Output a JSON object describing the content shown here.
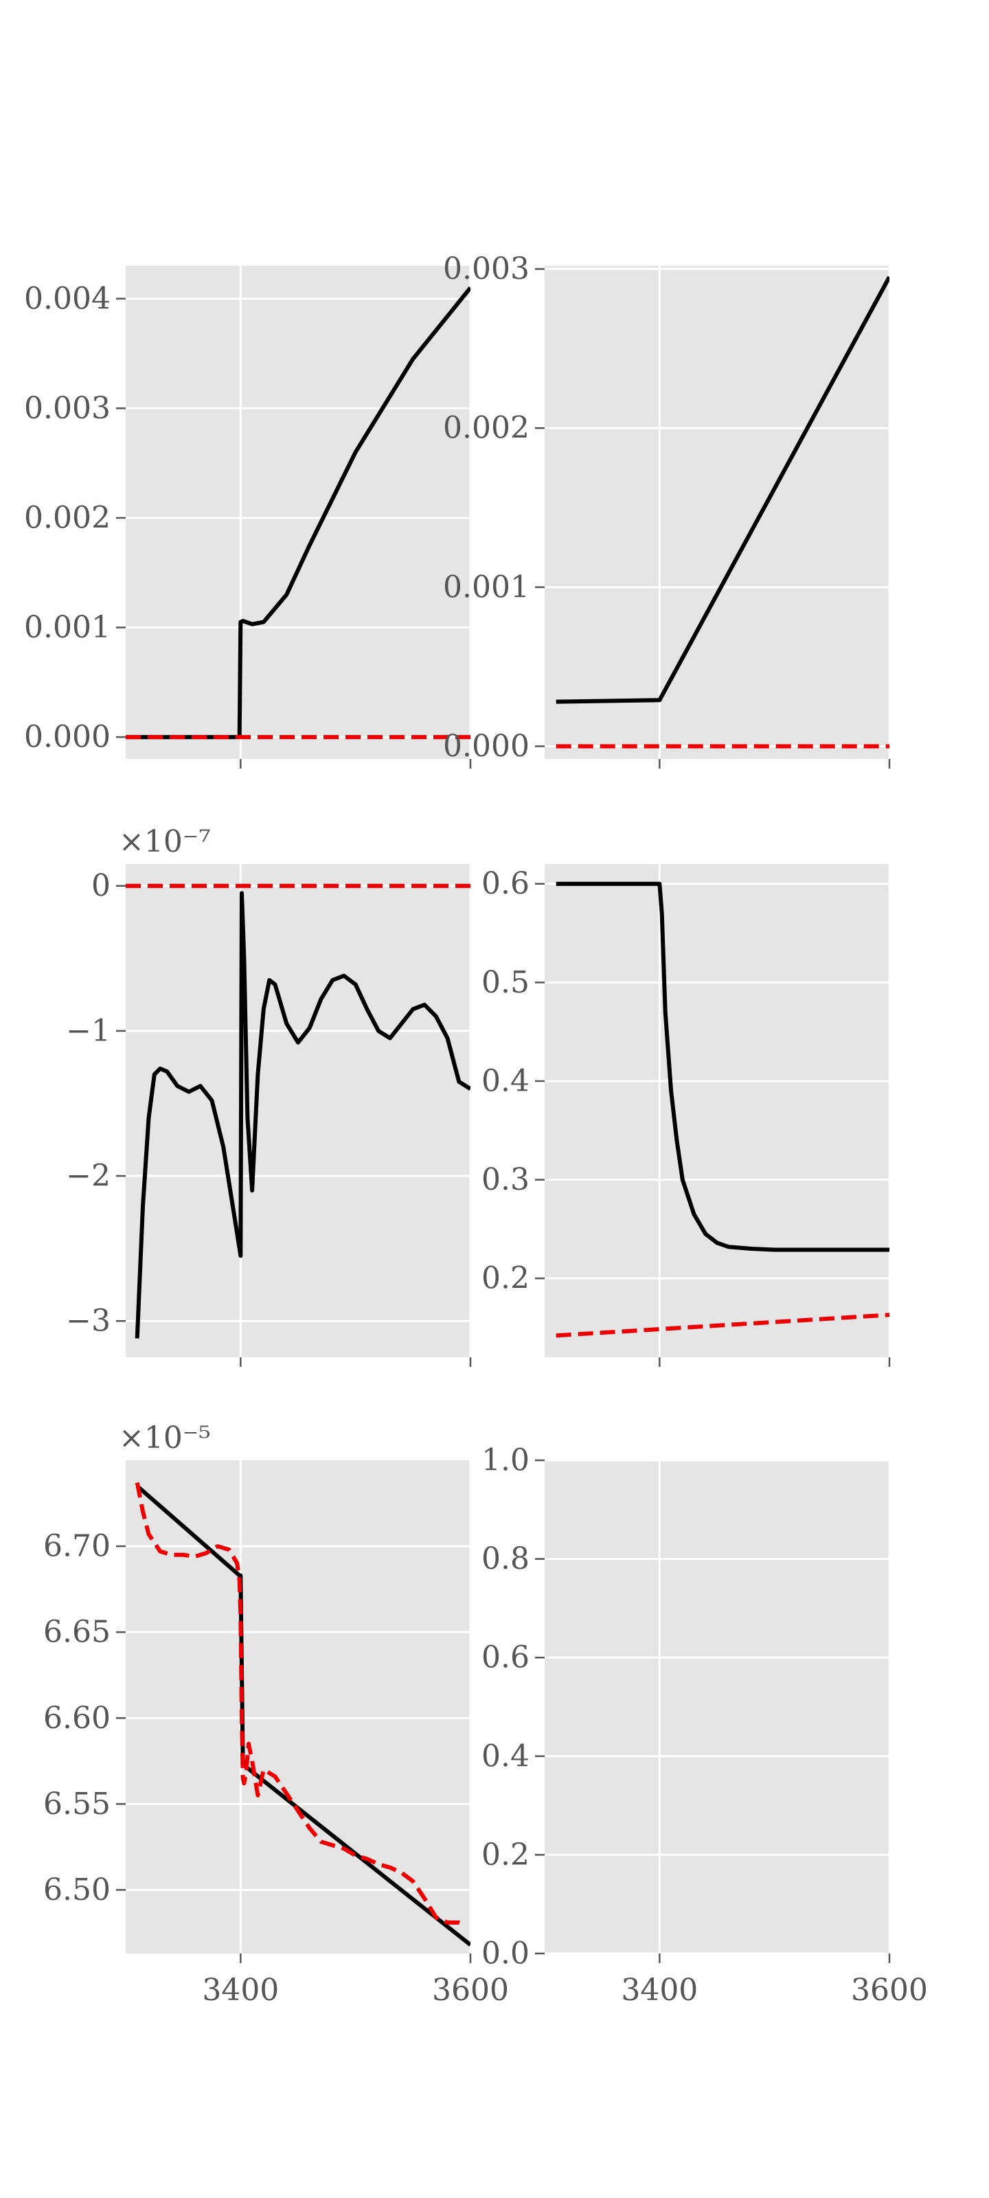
{
  "figure": {
    "background": "#ffffff",
    "panel_bg": "#e5e5e5",
    "grid_color": "#ffffff",
    "series_colors": {
      "solid": "#000000",
      "dashed": "#ee0000"
    }
  },
  "chart_data": [
    {
      "type": "line",
      "grid": true,
      "xlim": [
        3300,
        3600
      ],
      "ylim": [
        -0.0002,
        0.0043
      ],
      "xticks": [
        3400,
        3600
      ],
      "xtick_labels": [
        "",
        ""
      ],
      "yticks": [
        0.0,
        0.001,
        0.002,
        0.003,
        0.004
      ],
      "ytick_labels": [
        "0.000",
        "0.001",
        "0.002",
        "0.003",
        "0.004"
      ],
      "offset_text": "",
      "series": [
        {
          "style": "solid",
          "x": [
            3300,
            3399,
            3400,
            3402,
            3410,
            3420,
            3440,
            3460,
            3500,
            3550,
            3600
          ],
          "y": [
            0.0,
            0.0,
            0.00105,
            0.00106,
            0.00103,
            0.00105,
            0.0013,
            0.00175,
            0.0026,
            0.00345,
            0.0041
          ]
        },
        {
          "style": "dashed",
          "x": [
            3300,
            3600
          ],
          "y": [
            0.0,
            0.0
          ]
        }
      ]
    },
    {
      "type": "line",
      "grid": true,
      "xlim": [
        3300,
        3600
      ],
      "ylim": [
        -8e-05,
        0.00302
      ],
      "xticks": [
        3400,
        3600
      ],
      "xtick_labels": [
        "",
        ""
      ],
      "yticks": [
        0.0,
        0.001,
        0.002,
        0.003
      ],
      "ytick_labels": [
        "0.000",
        "0.001",
        "0.002",
        "0.003"
      ],
      "offset_text": "",
      "series": [
        {
          "style": "solid",
          "x": [
            3310,
            3400,
            3600
          ],
          "y": [
            0.00028,
            0.00029,
            0.00295
          ]
        },
        {
          "style": "dashed",
          "x": [
            3310,
            3600
          ],
          "y": [
            0.0,
            0.0
          ]
        }
      ]
    },
    {
      "type": "line",
      "grid": true,
      "xlim": [
        3300,
        3600
      ],
      "ylim": [
        -3.25,
        0.15
      ],
      "xticks": [
        3400,
        3600
      ],
      "xtick_labels": [
        "",
        ""
      ],
      "yticks": [
        -3,
        -2,
        -1,
        0
      ],
      "ytick_labels": [
        "−3",
        "−2",
        "−1",
        "0"
      ],
      "offset_text": "×10⁻⁷",
      "series": [
        {
          "style": "solid",
          "x": [
            3310,
            3315,
            3320,
            3325,
            3330,
            3336,
            3345,
            3355,
            3365,
            3375,
            3385,
            3395,
            3399,
            3400,
            3401,
            3403,
            3406,
            3410,
            3415,
            3420,
            3425,
            3430,
            3440,
            3450,
            3460,
            3470,
            3480,
            3490,
            3500,
            3510,
            3520,
            3530,
            3540,
            3550,
            3560,
            3570,
            3580,
            3590,
            3600
          ],
          "y": [
            -3.12,
            -2.2,
            -1.6,
            -1.3,
            -1.26,
            -1.28,
            -1.38,
            -1.42,
            -1.38,
            -1.48,
            -1.8,
            -2.3,
            -2.5,
            -2.55,
            -0.05,
            -0.5,
            -1.6,
            -2.1,
            -1.3,
            -0.85,
            -0.65,
            -0.68,
            -0.95,
            -1.08,
            -0.98,
            -0.78,
            -0.65,
            -0.62,
            -0.68,
            -0.85,
            -1.0,
            -1.05,
            -0.95,
            -0.85,
            -0.82,
            -0.9,
            -1.05,
            -1.35,
            -1.4
          ]
        },
        {
          "style": "dashed",
          "x": [
            3300,
            3600
          ],
          "y": [
            0.0,
            0.0
          ]
        }
      ]
    },
    {
      "type": "line",
      "grid": true,
      "xlim": [
        3300,
        3600
      ],
      "ylim": [
        0.12,
        0.62
      ],
      "xticks": [
        3400,
        3600
      ],
      "xtick_labels": [
        "",
        ""
      ],
      "yticks": [
        0.2,
        0.3,
        0.4,
        0.5,
        0.6
      ],
      "ytick_labels": [
        "0.2",
        "0.3",
        "0.4",
        "0.5",
        "0.6"
      ],
      "offset_text": "",
      "series": [
        {
          "style": "solid",
          "x": [
            3310,
            3398,
            3400,
            3402,
            3405,
            3410,
            3415,
            3420,
            3430,
            3440,
            3450,
            3460,
            3480,
            3500,
            3600
          ],
          "y": [
            0.6,
            0.6,
            0.6,
            0.57,
            0.47,
            0.39,
            0.34,
            0.3,
            0.265,
            0.245,
            0.236,
            0.232,
            0.23,
            0.229,
            0.229
          ]
        },
        {
          "style": "dashed",
          "x": [
            3310,
            3600
          ],
          "y": [
            0.142,
            0.163
          ]
        }
      ]
    },
    {
      "type": "line",
      "grid": true,
      "xlim": [
        3300,
        3600
      ],
      "ylim": [
        6.463,
        6.75
      ],
      "xticks": [
        3400,
        3600
      ],
      "xtick_labels": [
        "3400",
        "3600"
      ],
      "yticks": [
        6.5,
        6.55,
        6.6,
        6.65,
        6.7
      ],
      "ytick_labels": [
        "6.50",
        "6.55",
        "6.60",
        "6.65",
        "6.70"
      ],
      "offset_text": "×10⁻⁵",
      "series": [
        {
          "style": "solid",
          "x": [
            3310,
            3399,
            3400,
            3402,
            3600
          ],
          "y": [
            6.735,
            6.683,
            6.683,
            6.573,
            6.468
          ]
        },
        {
          "style": "dashed",
          "x": [
            3310,
            3315,
            3320,
            3330,
            3340,
            3350,
            3360,
            3370,
            3380,
            3390,
            3397,
            3399,
            3400,
            3401,
            3402,
            3403,
            3405,
            3407,
            3410,
            3415,
            3420,
            3430,
            3440,
            3450,
            3460,
            3470,
            3480,
            3490,
            3500,
            3510,
            3520,
            3530,
            3540,
            3550,
            3560,
            3570,
            3580,
            3590,
            3595
          ],
          "y": [
            6.737,
            6.72,
            6.707,
            6.697,
            6.695,
            6.695,
            6.694,
            6.696,
            6.7,
            6.698,
            6.69,
            6.68,
            6.66,
            6.6,
            6.565,
            6.562,
            6.57,
            6.585,
            6.575,
            6.555,
            6.57,
            6.566,
            6.556,
            6.546,
            6.536,
            6.528,
            6.526,
            6.524,
            6.52,
            6.518,
            6.515,
            6.513,
            6.51,
            6.505,
            6.495,
            6.484,
            6.481,
            6.481,
            6.48
          ]
        }
      ]
    },
    {
      "type": "line",
      "grid": true,
      "xlim": [
        3300,
        3600
      ],
      "ylim": [
        0.0,
        1.0
      ],
      "xticks": [
        3400,
        3600
      ],
      "xtick_labels": [
        "3400",
        "3600"
      ],
      "yticks": [
        0.0,
        0.2,
        0.4,
        0.6,
        0.8,
        1.0
      ],
      "ytick_labels": [
        "0.0",
        "0.2",
        "0.4",
        "0.6",
        "0.8",
        "1.0"
      ],
      "offset_text": "",
      "series": []
    }
  ]
}
